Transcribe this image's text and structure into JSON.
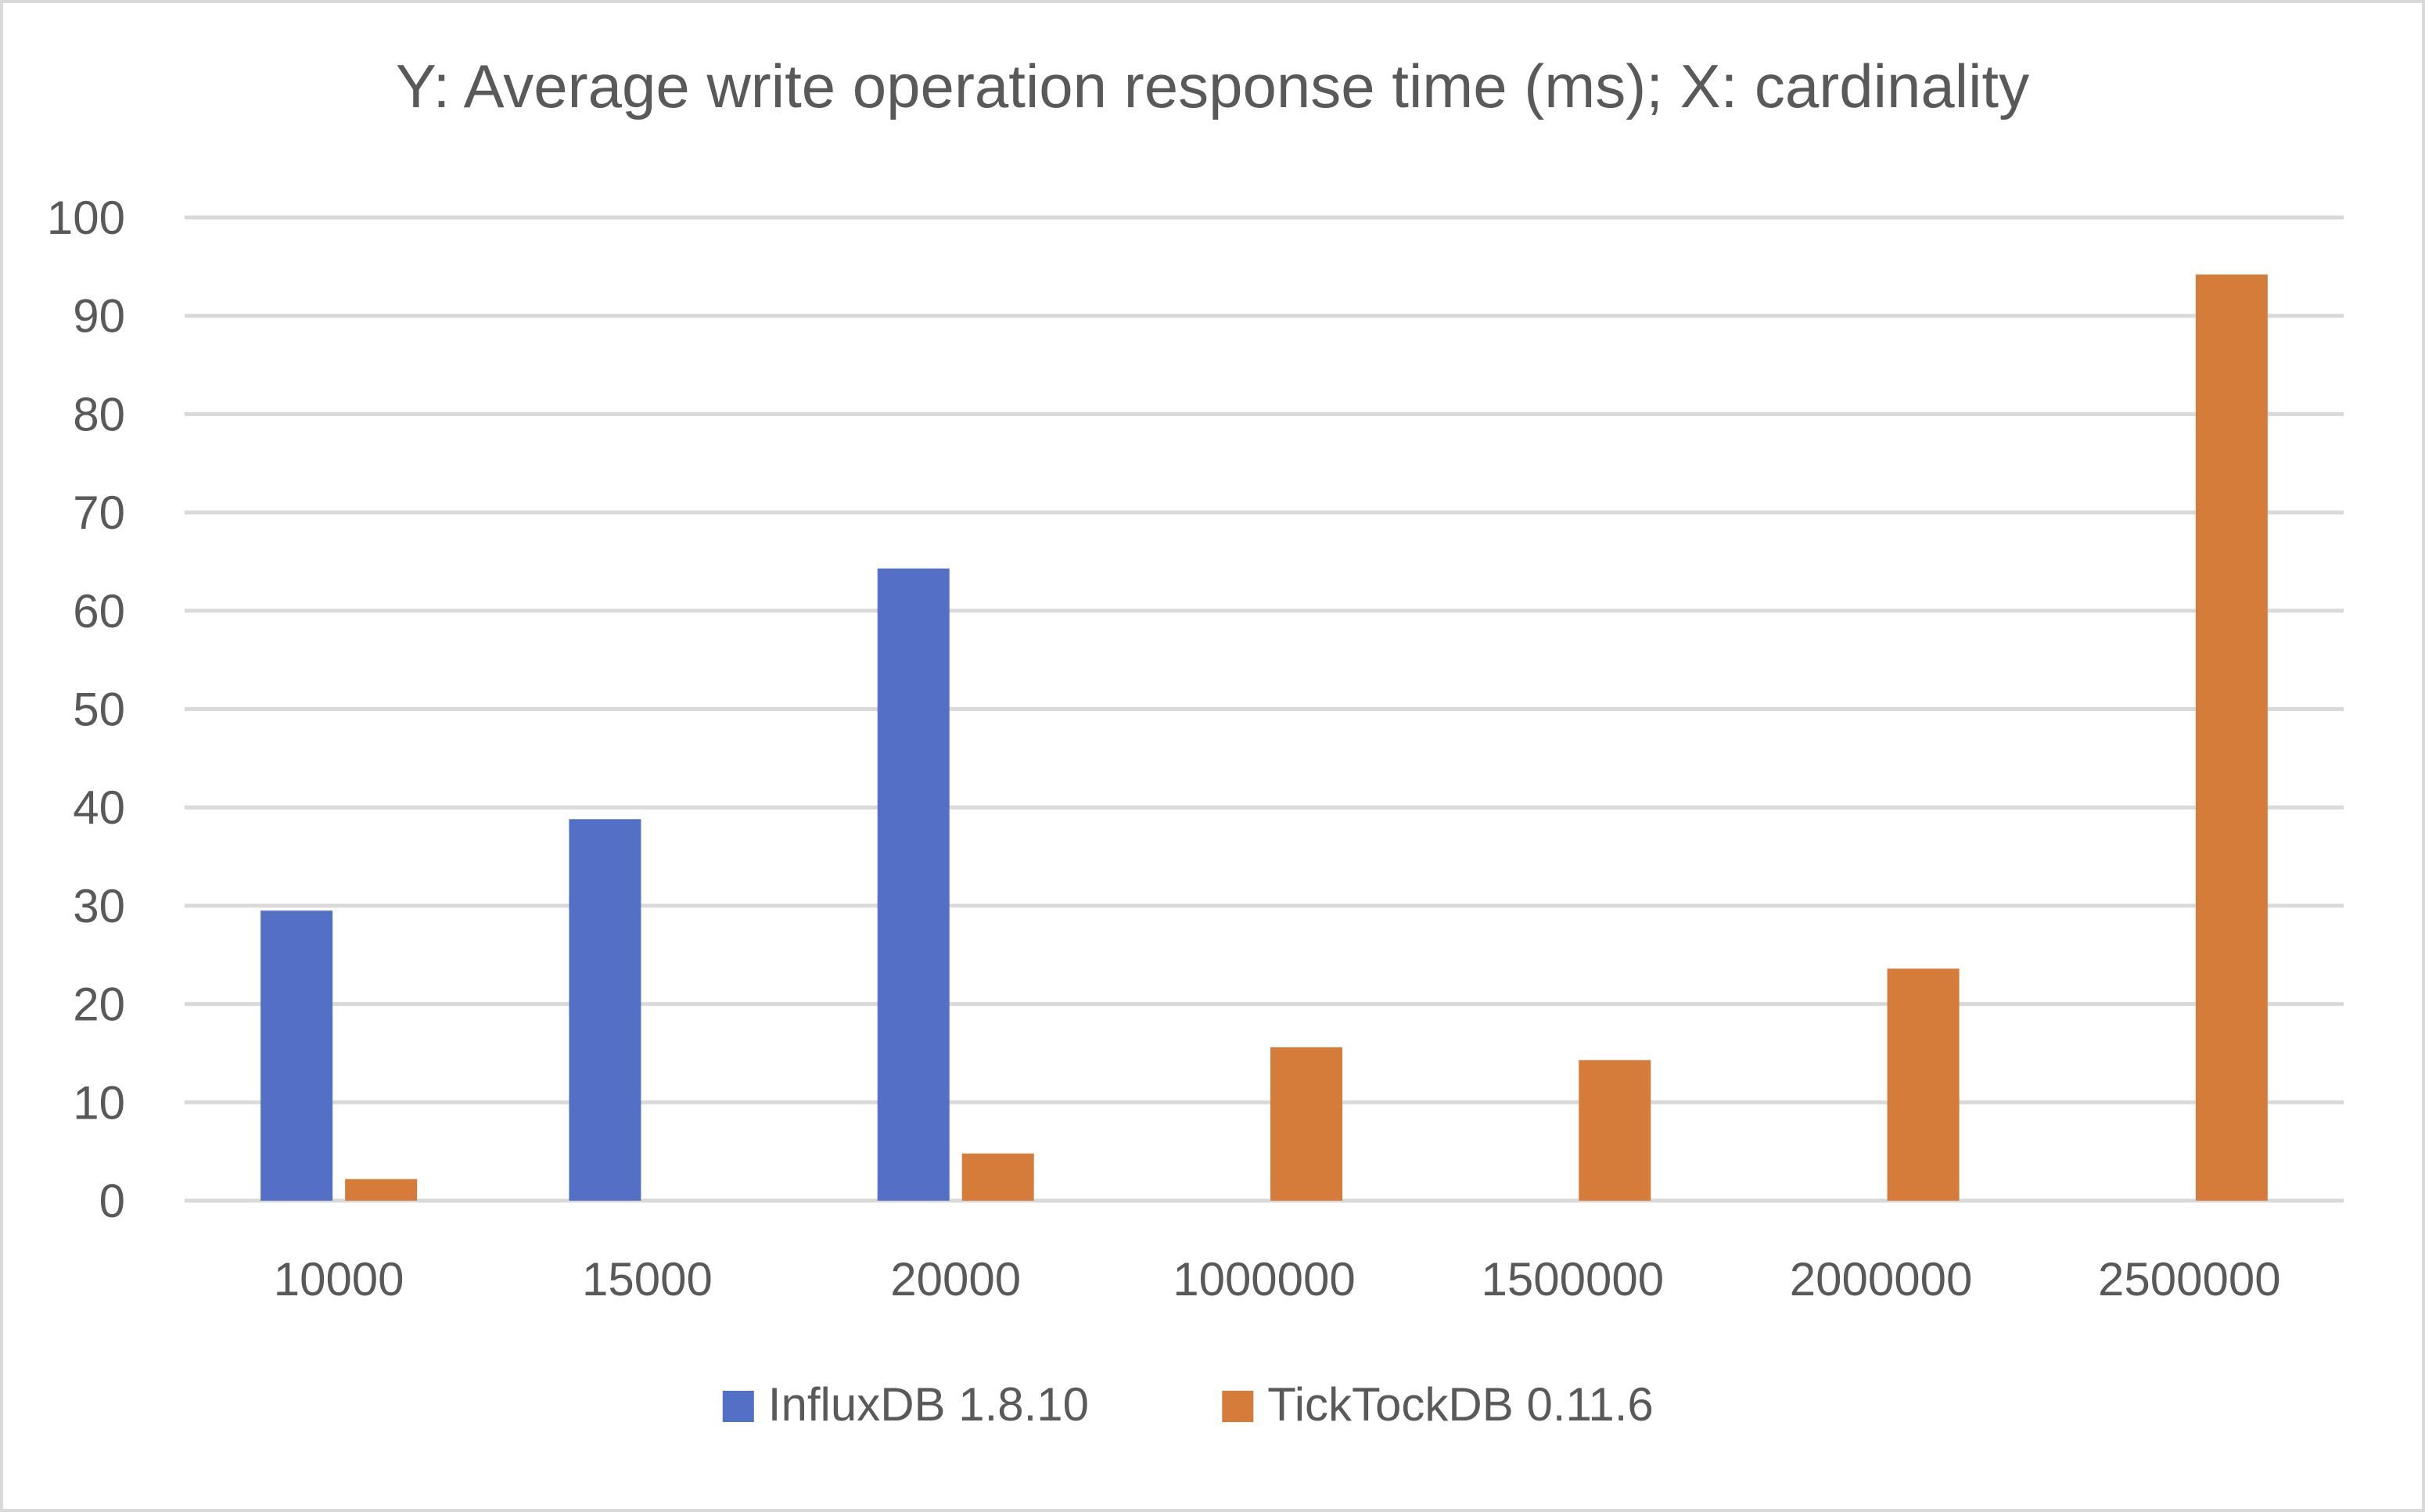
{
  "chart_data": {
    "type": "bar",
    "title": "Y: Average write operation response time (ms); X: cardinality",
    "xlabel": "",
    "ylabel": "",
    "categories": [
      "10000",
      "15000",
      "20000",
      "1000000",
      "1500000",
      "2000000",
      "2500000"
    ],
    "series": [
      {
        "name": "InfluxDB 1.8.10",
        "color": "#5470c6",
        "values": [
          29.5,
          38.8,
          64.3,
          null,
          null,
          null,
          null
        ]
      },
      {
        "name": "TickTockDB 0.11.6",
        "color": "#d67c3a",
        "values": [
          2.2,
          null,
          4.8,
          15.6,
          14.3,
          23.6,
          94.2
        ]
      }
    ],
    "ylim": [
      0,
      100
    ],
    "yticks": [
      0,
      10,
      20,
      30,
      40,
      50,
      60,
      70,
      80,
      90,
      100
    ],
    "grid": true,
    "legend_position": "bottom"
  }
}
